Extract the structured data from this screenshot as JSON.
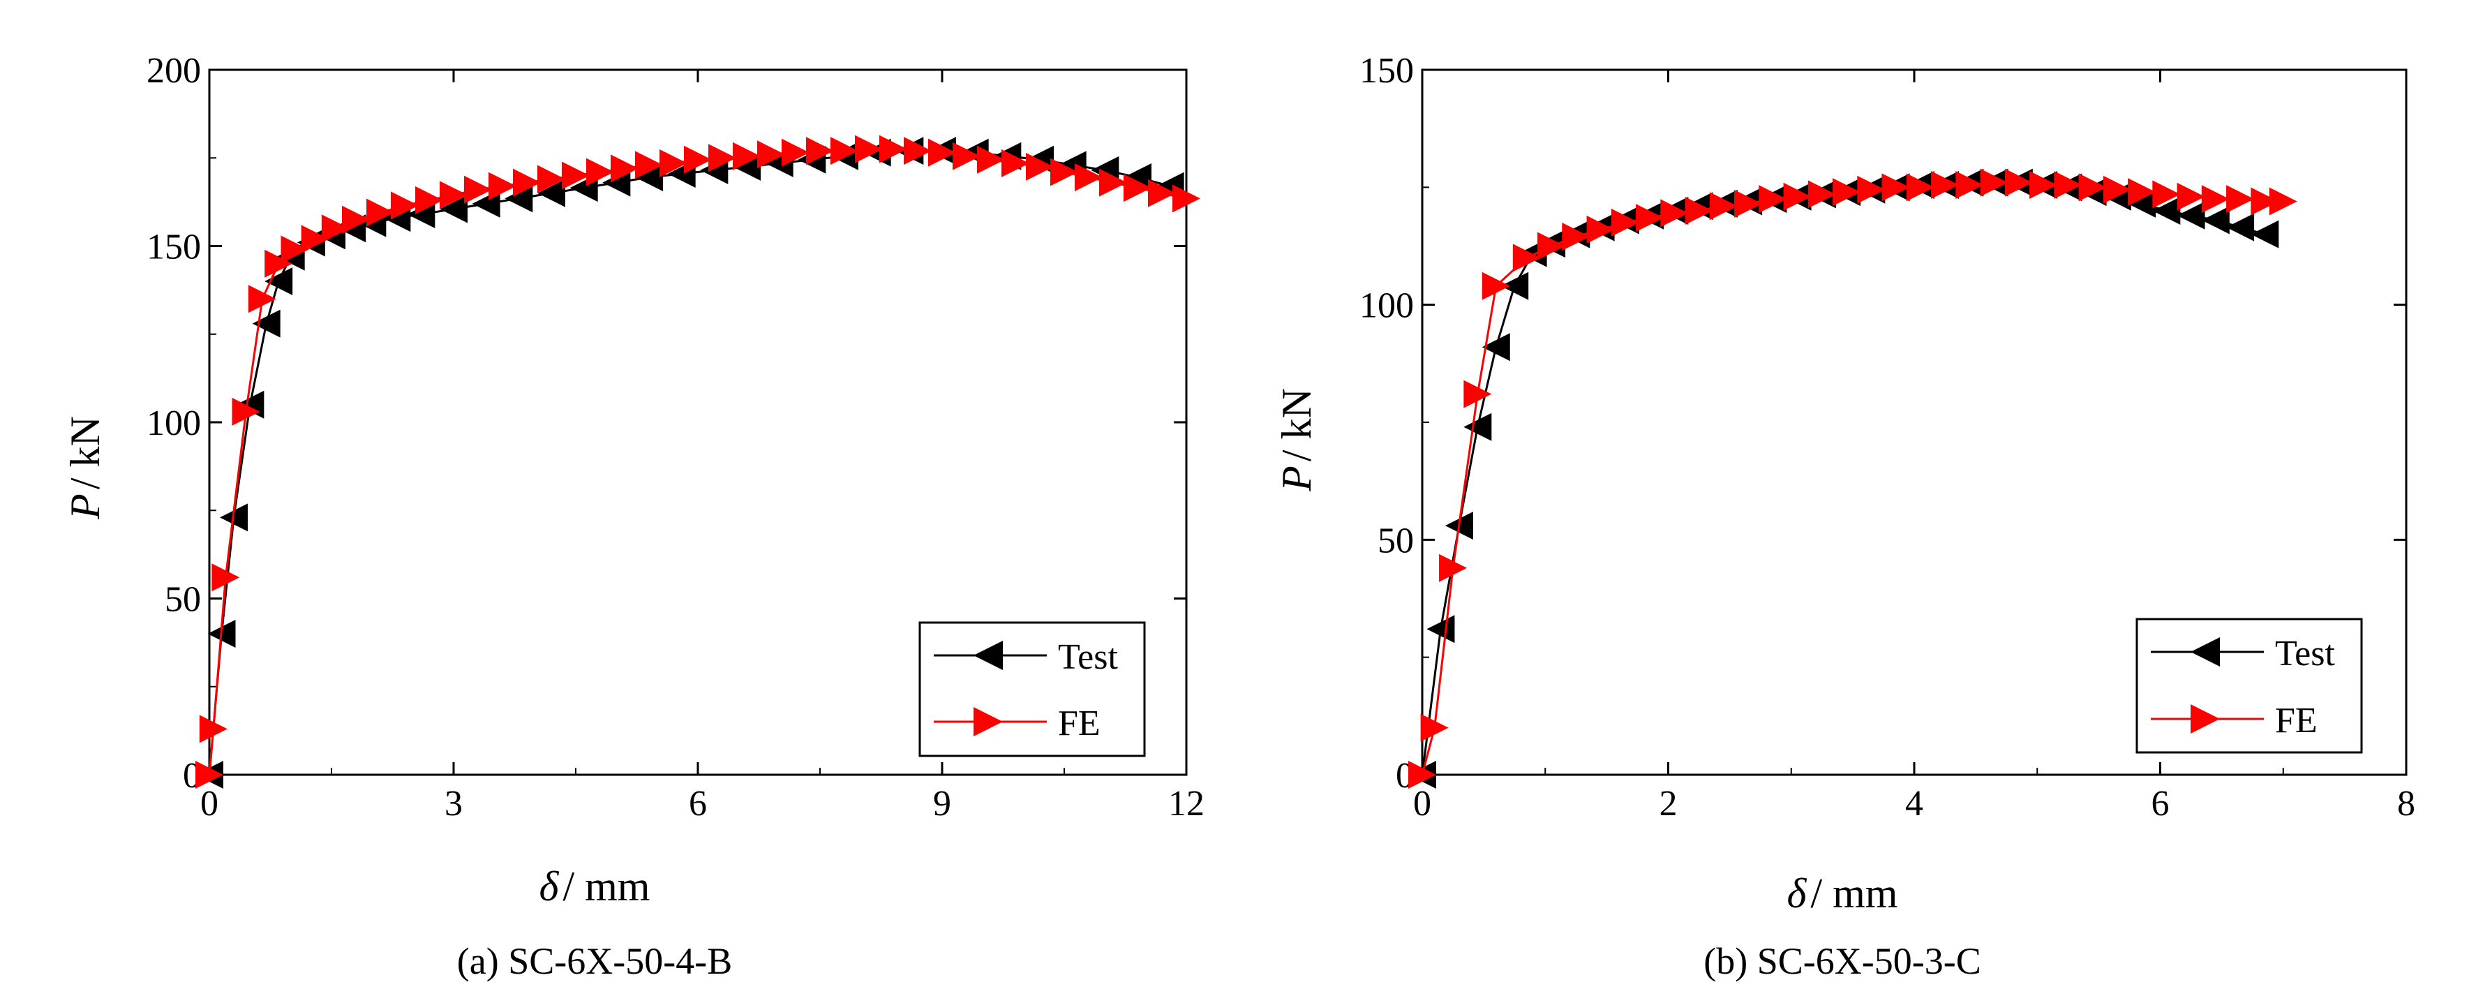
{
  "colors": {
    "test": "#000000",
    "fe": "#ff0000",
    "axis": "#000000",
    "background": "#ffffff"
  },
  "chart_data": [
    {
      "id": "a",
      "type": "line",
      "caption": "(a) SC-6X-50-4-B",
      "xlabel": {
        "symbol": "δ",
        "rest": "/ mm"
      },
      "ylabel": {
        "symbol": "P",
        "rest": "/ kN"
      },
      "xlim": [
        0,
        12
      ],
      "ylim": [
        0,
        200
      ],
      "xticks": [
        0,
        3,
        6,
        9,
        12
      ],
      "yticks": [
        0,
        50,
        100,
        150,
        200
      ],
      "xtick_labels": [
        "0",
        "3",
        "6",
        "9",
        "12"
      ],
      "ytick_labels": [
        "0",
        "50",
        "100",
        "150",
        "200"
      ],
      "legend_position": "bottom-right",
      "series": [
        {
          "name": "Test",
          "marker": "left-triangle",
          "color": "#000000",
          "points": [
            [
              0,
              0
            ],
            [
              0.15,
              40
            ],
            [
              0.3,
              73
            ],
            [
              0.5,
              105
            ],
            [
              0.7,
              128
            ],
            [
              0.85,
              140
            ],
            [
              1.0,
              147
            ],
            [
              1.25,
              151
            ],
            [
              1.5,
              153
            ],
            [
              1.75,
              155
            ],
            [
              2.0,
              156.5
            ],
            [
              2.3,
              158
            ],
            [
              2.6,
              159
            ],
            [
              3.0,
              160.5
            ],
            [
              3.4,
              162
            ],
            [
              3.8,
              163.5
            ],
            [
              4.2,
              165
            ],
            [
              4.6,
              166.5
            ],
            [
              5.0,
              168
            ],
            [
              5.4,
              169.5
            ],
            [
              5.8,
              170.5
            ],
            [
              6.2,
              171.5
            ],
            [
              6.6,
              172.5
            ],
            [
              7.0,
              173.5
            ],
            [
              7.4,
              174.5
            ],
            [
              7.8,
              175.5
            ],
            [
              8.2,
              176.5
            ],
            [
              8.6,
              177
            ],
            [
              9.0,
              177
            ],
            [
              9.4,
              176.5
            ],
            [
              9.8,
              175.5
            ],
            [
              10.2,
              174.5
            ],
            [
              10.6,
              173
            ],
            [
              11.0,
              171.5
            ],
            [
              11.4,
              169.5
            ],
            [
              11.8,
              167
            ]
          ]
        },
        {
          "name": "FE",
          "marker": "right-triangle",
          "color": "#ff0000",
          "points": [
            [
              0,
              0
            ],
            [
              0.05,
              13
            ],
            [
              0.2,
              56
            ],
            [
              0.45,
              103
            ],
            [
              0.65,
              135
            ],
            [
              0.85,
              145
            ],
            [
              1.05,
              149
            ],
            [
              1.3,
              152
            ],
            [
              1.55,
              155
            ],
            [
              1.8,
              157.5
            ],
            [
              2.1,
              159.5
            ],
            [
              2.4,
              161.5
            ],
            [
              2.7,
              163
            ],
            [
              3.0,
              164.5
            ],
            [
              3.3,
              166
            ],
            [
              3.6,
              167
            ],
            [
              3.9,
              168
            ],
            [
              4.2,
              169
            ],
            [
              4.5,
              170
            ],
            [
              4.8,
              171
            ],
            [
              5.1,
              172
            ],
            [
              5.4,
              173
            ],
            [
              5.7,
              173.5
            ],
            [
              6.0,
              174.5
            ],
            [
              6.3,
              175
            ],
            [
              6.6,
              175.5
            ],
            [
              6.9,
              176
            ],
            [
              7.2,
              176.5
            ],
            [
              7.5,
              177
            ],
            [
              7.8,
              177
            ],
            [
              8.1,
              177.5
            ],
            [
              8.4,
              177.5
            ],
            [
              8.7,
              177
            ],
            [
              9.0,
              176.5
            ],
            [
              9.3,
              175.5
            ],
            [
              9.6,
              174.5
            ],
            [
              9.9,
              173.5
            ],
            [
              10.2,
              172.5
            ],
            [
              10.5,
              171
            ],
            [
              10.8,
              169.5
            ],
            [
              11.1,
              168
            ],
            [
              11.4,
              166.5
            ],
            [
              11.7,
              165
            ],
            [
              12.0,
              163.5
            ]
          ]
        }
      ]
    },
    {
      "id": "b",
      "type": "line",
      "caption": "(b) SC-6X-50-3-C",
      "xlabel": {
        "symbol": "δ",
        "rest": "/ mm"
      },
      "ylabel": {
        "symbol": "P",
        "rest": "/ kN"
      },
      "xlim": [
        0,
        8
      ],
      "ylim": [
        0,
        150
      ],
      "xticks": [
        0,
        2,
        4,
        6,
        8
      ],
      "yticks": [
        0,
        50,
        100,
        150
      ],
      "xtick_labels": [
        "0",
        "2",
        "4",
        "6",
        "8"
      ],
      "ytick_labels": [
        "0",
        "50",
        "100",
        "150"
      ],
      "legend_position": "bottom-right",
      "series": [
        {
          "name": "Test",
          "marker": "left-triangle",
          "color": "#000000",
          "points": [
            [
              0,
              0
            ],
            [
              0.15,
              31
            ],
            [
              0.3,
              53
            ],
            [
              0.45,
              74
            ],
            [
              0.6,
              91
            ],
            [
              0.75,
              104
            ],
            [
              0.9,
              111
            ],
            [
              1.05,
              113
            ],
            [
              1.25,
              115
            ],
            [
              1.45,
              116.5
            ],
            [
              1.65,
              118
            ],
            [
              1.85,
              119
            ],
            [
              2.05,
              120
            ],
            [
              2.25,
              121
            ],
            [
              2.45,
              121.5
            ],
            [
              2.65,
              122
            ],
            [
              2.85,
              122.5
            ],
            [
              3.05,
              123
            ],
            [
              3.25,
              123.5
            ],
            [
              3.45,
              124
            ],
            [
              3.65,
              124.5
            ],
            [
              3.85,
              125
            ],
            [
              4.05,
              125.5
            ],
            [
              4.25,
              125.5
            ],
            [
              4.45,
              126
            ],
            [
              4.65,
              126
            ],
            [
              4.85,
              126
            ],
            [
              5.05,
              125.5
            ],
            [
              5.25,
              125
            ],
            [
              5.45,
              124
            ],
            [
              5.65,
              123
            ],
            [
              5.85,
              121.5
            ],
            [
              6.05,
              120
            ],
            [
              6.25,
              119
            ],
            [
              6.45,
              118
            ],
            [
              6.65,
              116.5
            ],
            [
              6.85,
              115
            ]
          ]
        },
        {
          "name": "FE",
          "marker": "right-triangle",
          "color": "#ff0000",
          "points": [
            [
              0,
              0
            ],
            [
              0.1,
              10
            ],
            [
              0.25,
              44
            ],
            [
              0.45,
              81
            ],
            [
              0.6,
              104
            ],
            [
              0.85,
              110
            ],
            [
              1.05,
              112.5
            ],
            [
              1.25,
              114.5
            ],
            [
              1.45,
              116
            ],
            [
              1.65,
              117.5
            ],
            [
              1.85,
              118.5
            ],
            [
              2.05,
              119.5
            ],
            [
              2.25,
              120
            ],
            [
              2.45,
              121
            ],
            [
              2.65,
              121.5
            ],
            [
              2.85,
              122.5
            ],
            [
              3.05,
              123
            ],
            [
              3.25,
              123.5
            ],
            [
              3.45,
              124
            ],
            [
              3.65,
              124.5
            ],
            [
              3.85,
              125
            ],
            [
              4.05,
              125
            ],
            [
              4.25,
              125.5
            ],
            [
              4.45,
              125.5
            ],
            [
              4.65,
              126
            ],
            [
              4.85,
              126
            ],
            [
              5.05,
              125.5
            ],
            [
              5.25,
              125.5
            ],
            [
              5.45,
              125
            ],
            [
              5.65,
              124.5
            ],
            [
              5.85,
              124
            ],
            [
              6.05,
              123.5
            ],
            [
              6.25,
              123
            ],
            [
              6.45,
              122.5
            ],
            [
              6.65,
              122.5
            ],
            [
              6.85,
              122
            ],
            [
              7.0,
              122
            ]
          ]
        }
      ]
    }
  ]
}
